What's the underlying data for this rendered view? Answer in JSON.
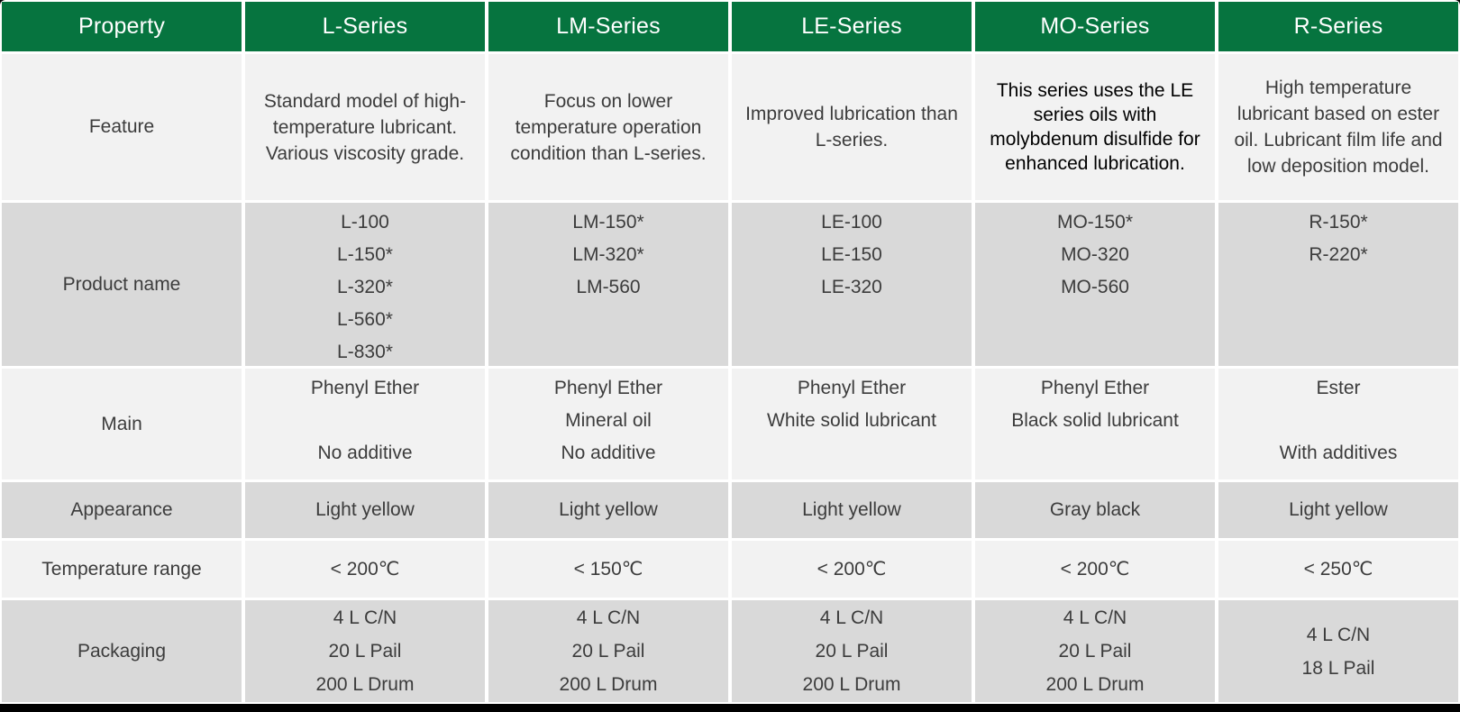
{
  "colors": {
    "header_green": "#06743F",
    "header_text": "#FFFFFF",
    "row_light": "#F2F2F2",
    "row_dark": "#D9D9D9",
    "body_text": "#3C3C3C",
    "mo_feature_text": "#000000",
    "frame_border": "#000000"
  },
  "table": {
    "header": {
      "property": "Property",
      "columns": [
        "L-Series",
        "LM-Series",
        "LE-Series",
        "MO-Series",
        "R-Series"
      ]
    },
    "rows": [
      {
        "label": "Feature",
        "cells": [
          "Standard model of high-temperature lubricant. Various viscosity grade.",
          "Focus on lower temperature operation condition than L-series.",
          "Improved lubrication than L-series.",
          "This series uses the LE series oils with molybdenum disulfide for enhanced lubrication.",
          "High temperature lubricant based on ester oil. Lubricant film life and low deposition model."
        ]
      },
      {
        "label": "Product name",
        "cells": [
          [
            "L-100",
            "L-150*",
            "L-320*",
            "L-560*",
            "L-830*"
          ],
          [
            "LM-150*",
            "LM-320*",
            "LM-560"
          ],
          [
            "LE-100",
            "LE-150",
            "LE-320"
          ],
          [
            "MO-150*",
            "MO-320",
            "MO-560"
          ],
          [
            "R-150*",
            "R-220*"
          ]
        ]
      },
      {
        "label": "Main",
        "cells": [
          [
            "Phenyl Ether",
            "",
            "No additive"
          ],
          [
            "Phenyl Ether",
            "Mineral oil",
            "No additive"
          ],
          [
            "Phenyl Ether",
            "White solid lubricant",
            ""
          ],
          [
            "Phenyl Ether",
            "Black solid lubricant",
            ""
          ],
          [
            "Ester",
            "",
            "With additives"
          ]
        ]
      },
      {
        "label": "Appearance",
        "cells": [
          "Light yellow",
          "Light yellow",
          "Light yellow",
          "Gray black",
          "Light yellow"
        ]
      },
      {
        "label": "Temperature range",
        "cells": [
          "< 200℃",
          "< 150℃",
          "< 200℃",
          "< 200℃",
          "< 250℃"
        ]
      },
      {
        "label": "Packaging",
        "cells": [
          [
            "4 L C/N",
            "20 L Pail",
            "200 L Drum"
          ],
          [
            "4 L C/N",
            "20 L Pail",
            "200 L Drum"
          ],
          [
            "4 L C/N",
            "20 L Pail",
            "200 L Drum"
          ],
          [
            "4 L C/N",
            "20 L Pail",
            "200 L Drum"
          ],
          [
            "4 L C/N",
            "18 L Pail"
          ]
        ]
      }
    ]
  }
}
